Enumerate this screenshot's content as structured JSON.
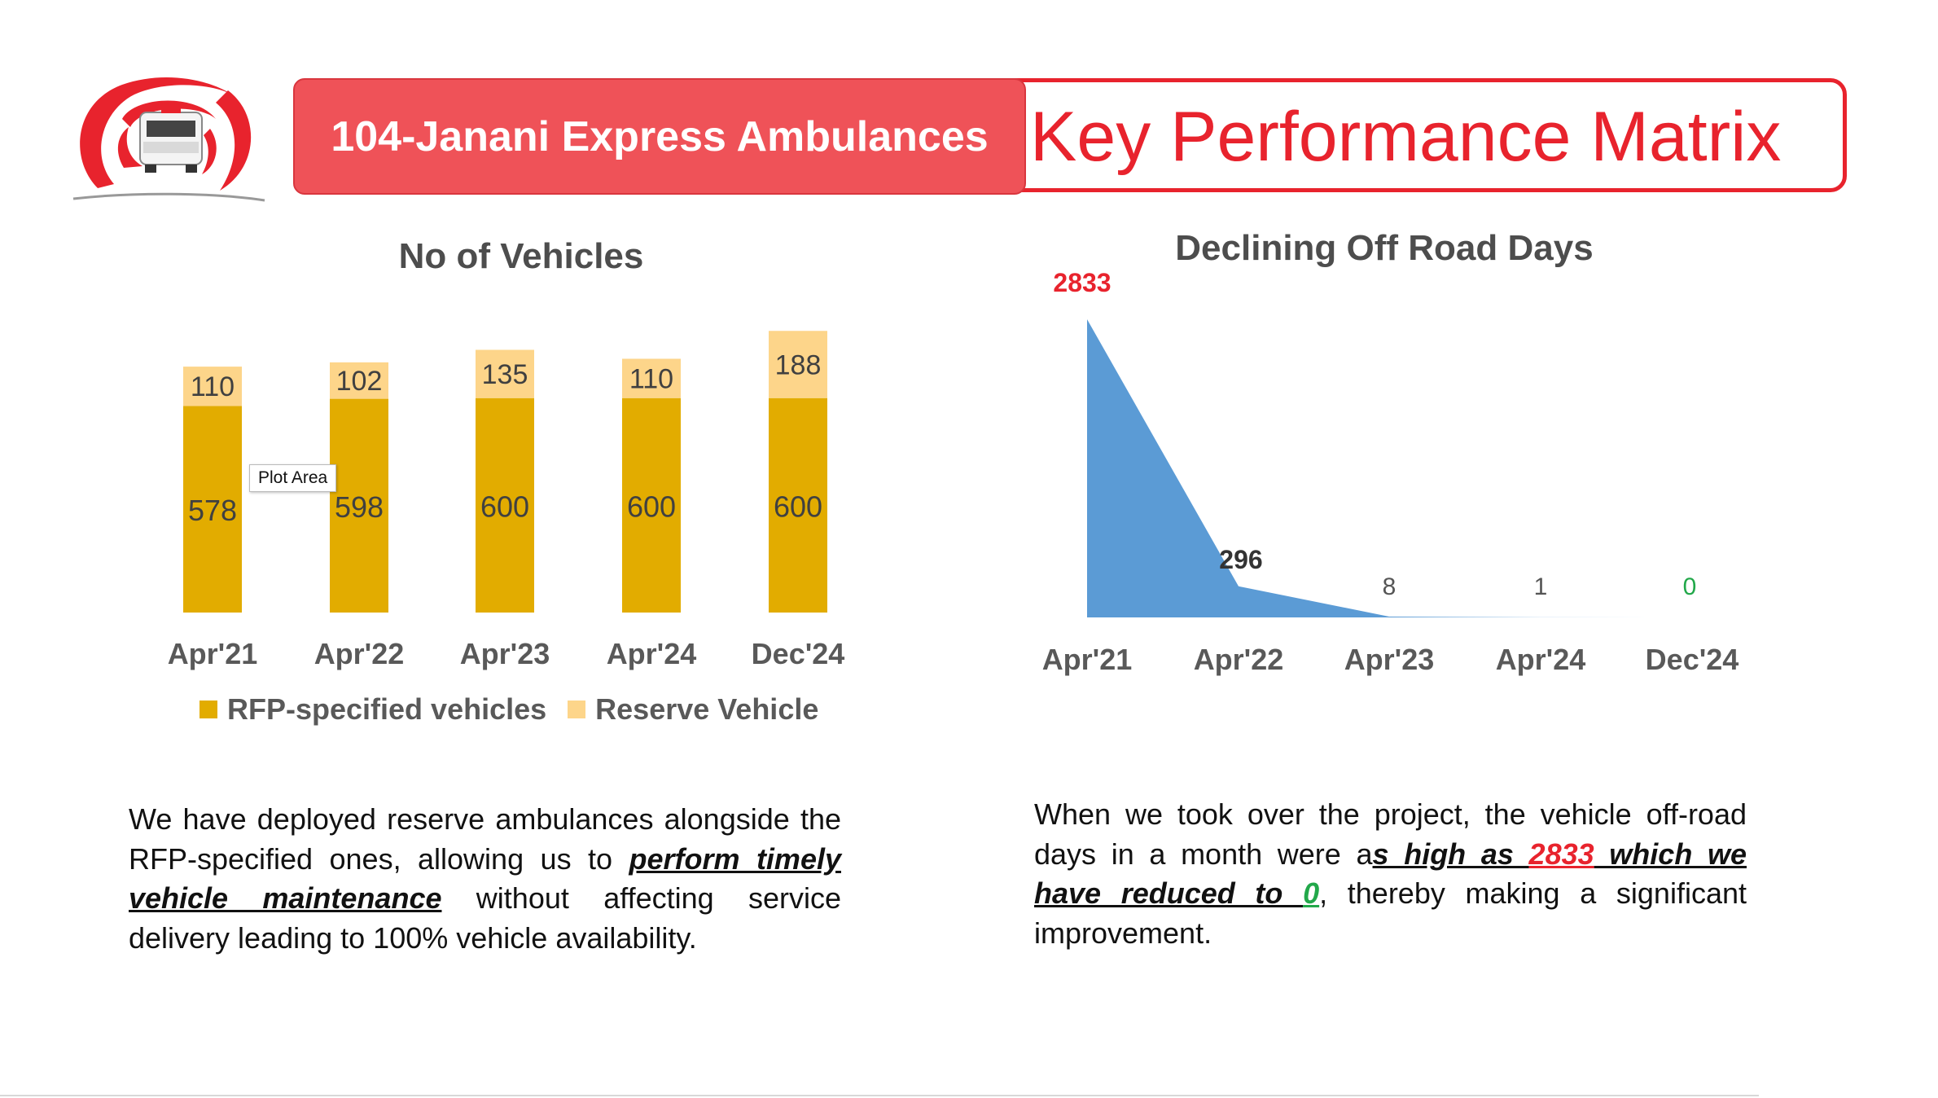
{
  "header": {
    "badge": "104-Janani Express Ambulances",
    "title": "Key Performance Matrix"
  },
  "colors": {
    "accent_red": "#e8232d",
    "badge_fill": "#ef5258",
    "rfp_bar": "#e2ac00",
    "reserve_bar": "#fdd58a",
    "area_fill": "#5b9bd5",
    "zero_green": "#22a84a"
  },
  "tooltip": "Plot Area",
  "chart_data": [
    {
      "type": "bar",
      "stacked": true,
      "title": "No of Vehicles",
      "categories": [
        "Apr'21",
        "Apr'22",
        "Apr'23",
        "Apr'24",
        "Dec'24"
      ],
      "series": [
        {
          "name": "RFP-specified vehicles",
          "values": [
            578,
            598,
            600,
            600,
            600
          ]
        },
        {
          "name": "Reserve Vehicle",
          "values": [
            110,
            102,
            135,
            110,
            188
          ]
        }
      ],
      "legend": "bottom",
      "grid": false
    },
    {
      "type": "area",
      "title": "Declining Off Road Days",
      "categories": [
        "Apr'21",
        "Apr'22",
        "Apr'23",
        "Apr'24",
        "Dec'24"
      ],
      "values": [
        2833,
        296,
        8,
        1,
        0
      ],
      "grid": false
    }
  ],
  "text": {
    "left_p1": "We have deployed reserve ambulances alongside the RFP-specified ones, allowing us to ",
    "left_emph": "perform timely vehicle maintenance",
    "left_p2": " without affecting service delivery leading to 100% vehicle availability.",
    "right_p1": "When we took over the project, the vehicle off-road days in a month were a",
    "right_emph1": "s high as ",
    "right_red": "2833",
    "right_emph2": " which we have reduced to ",
    "right_green": "0",
    "right_p2": ", thereby making a significant improvement."
  }
}
